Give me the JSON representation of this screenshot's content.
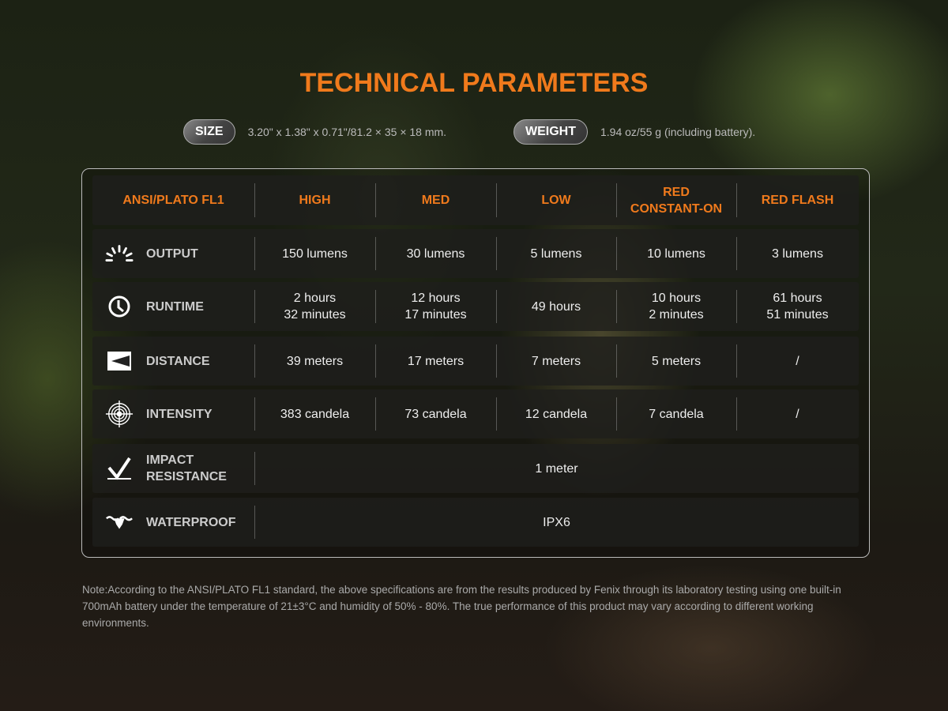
{
  "title": "TECHNICAL PARAMETERS",
  "size": {
    "label": "SIZE",
    "value": "3.20\" x 1.38\" x 0.71\"/81.2 × 35 × 18 mm."
  },
  "weight": {
    "label": "WEIGHT",
    "value": "1.94 oz/55 g (including battery)."
  },
  "table": {
    "headers": [
      "ANSI/PLATO FL1",
      "HIGH",
      "MED",
      "LOW",
      "RED\nCONSTANT-ON",
      "RED FLASH"
    ],
    "rows": [
      {
        "icon": "sunburst-icon",
        "label": "OUTPUT",
        "cells": [
          "150 lumens",
          "30 lumens",
          "5 lumens",
          "10 lumens",
          "3 lumens"
        ]
      },
      {
        "icon": "clock-icon",
        "label": "RUNTIME",
        "cells": [
          "2 hours\n32 minutes",
          "12 hours\n17 minutes",
          "49 hours",
          "10 hours\n2 minutes",
          "61 hours\n51 minutes"
        ]
      },
      {
        "icon": "beam-distance-icon",
        "label": "DISTANCE",
        "cells": [
          "39 meters",
          "17 meters",
          "7 meters",
          "5 meters",
          "/"
        ]
      },
      {
        "icon": "target-icon",
        "label": "INTENSITY",
        "cells": [
          "383 candela",
          "73 candela",
          "12 candela",
          "7 candela",
          "/"
        ]
      },
      {
        "icon": "impact-icon",
        "label": "IMPACT\nRESISTANCE",
        "cells": [
          "1 meter"
        ]
      },
      {
        "icon": "waterproof-icon",
        "label": "WATERPROOF",
        "cells": [
          "IPX6"
        ]
      }
    ]
  },
  "note": "Note:According to the ANSI/PLATO FL1 standard, the above specifications are from the results produced by Fenix through its laboratory testing using one built-in 700mAh battery under the temperature of 21±3°C and humidity of 50% - 80%. The true performance of this product may vary according to different working environments.",
  "colors": {
    "accent": "#f07a1c"
  }
}
